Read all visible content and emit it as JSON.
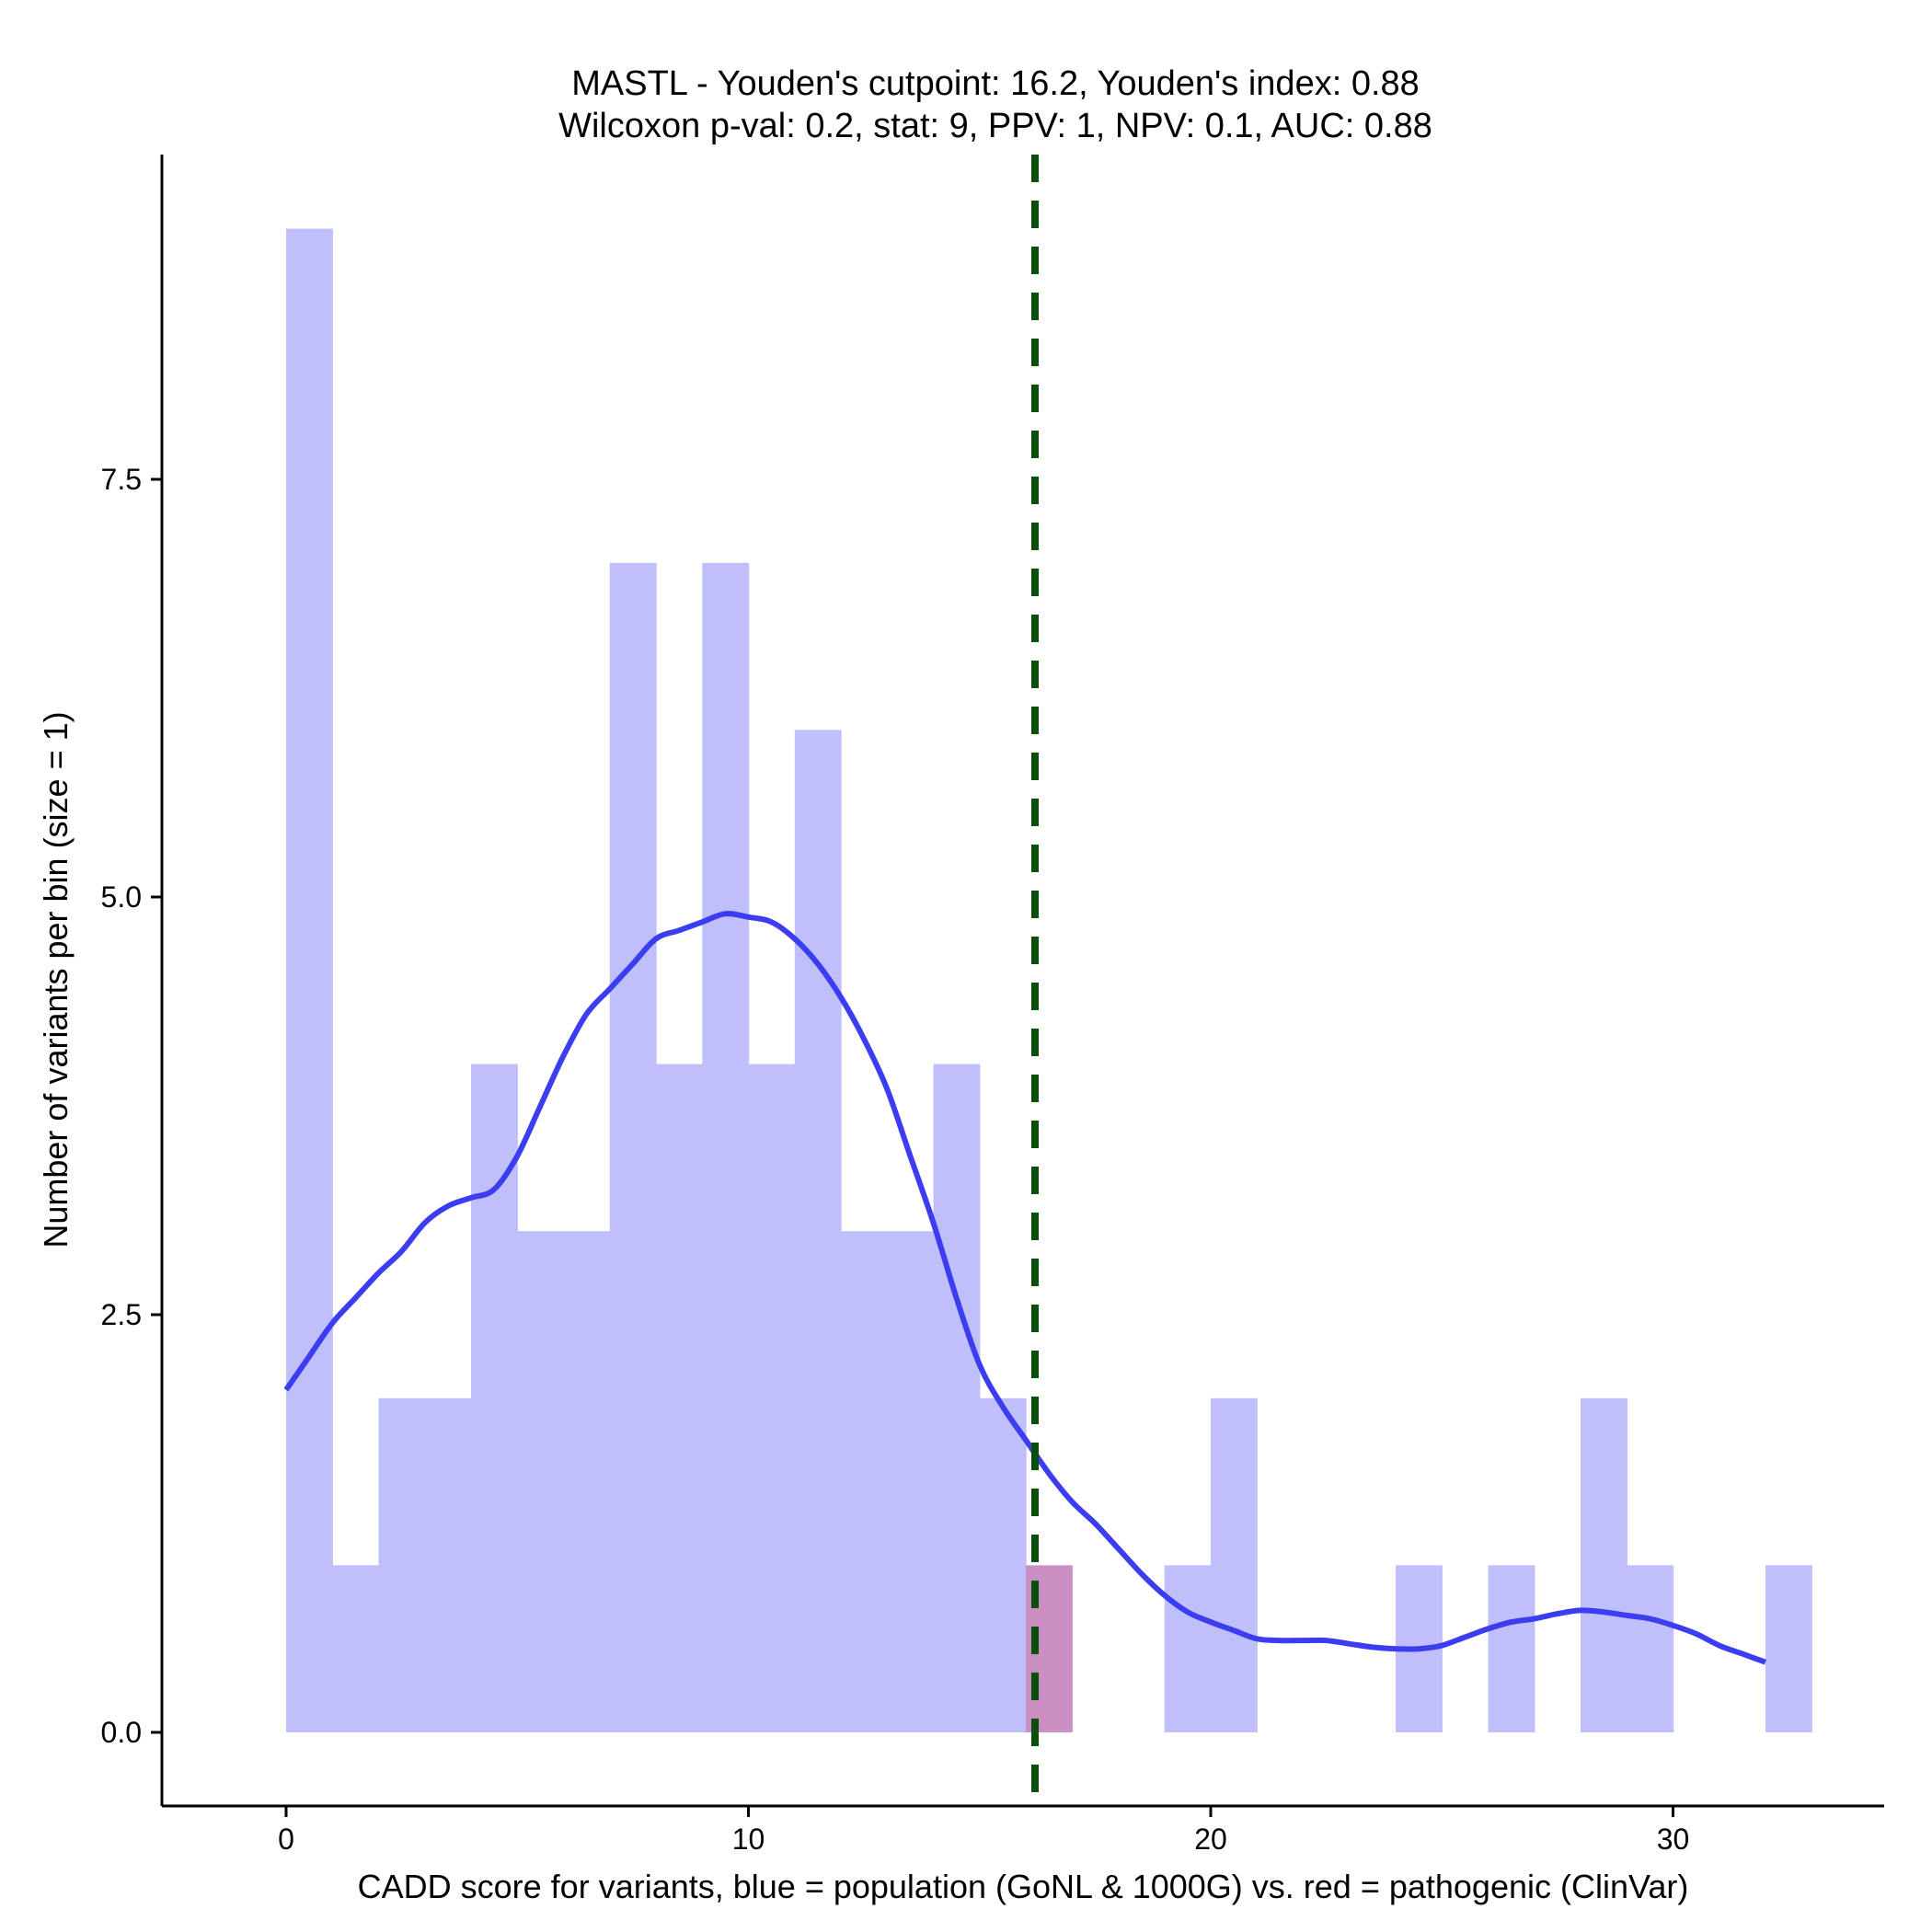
{
  "chart_data": {
    "type": "histogram",
    "title": "MASTL - Youden's cutpoint: 16.2, Youden's index: 0.88",
    "subtitle": "Wilcoxon p-val: 0.2, stat: 9, PPV: 1, NPV: 0.1, AUC: 0.88",
    "xlabel": "CADD score for variants, blue = population (GoNL & 1000G) vs. red = pathogenic (ClinVar)",
    "ylabel": "Number of variants per bin (size = 1)",
    "xlim": [
      -2.7,
      34.6
    ],
    "ylim": [
      -0.45,
      9.6
    ],
    "x_ticks": [
      {
        "value": 0,
        "label": "0"
      },
      {
        "value": 10,
        "label": "10"
      },
      {
        "value": 20,
        "label": "20"
      },
      {
        "value": 30,
        "label": "30"
      }
    ],
    "y_ticks": [
      {
        "value": 0,
        "label": "0.0"
      },
      {
        "value": 2.5,
        "label": "2.5"
      },
      {
        "value": 5,
        "label": "5.0"
      },
      {
        "value": 7.5,
        "label": "7.5"
      }
    ],
    "bin_width": 1,
    "colors": {
      "population": "#bfbffc",
      "pathogenic": "#cc8fc4",
      "density_line": "#3c3cf0",
      "cutpoint_line": "#0a500a",
      "axis": "#000000"
    },
    "series": [
      {
        "key": "population",
        "bins": [
          {
            "x0": 0,
            "count": 9
          },
          {
            "x0": 1,
            "count": 1
          },
          {
            "x0": 2,
            "count": 2
          },
          {
            "x0": 3,
            "count": 2
          },
          {
            "x0": 4,
            "count": 4
          },
          {
            "x0": 5,
            "count": 3
          },
          {
            "x0": 6,
            "count": 3
          },
          {
            "x0": 7,
            "count": 7
          },
          {
            "x0": 8,
            "count": 4
          },
          {
            "x0": 9,
            "count": 7
          },
          {
            "x0": 10,
            "count": 4
          },
          {
            "x0": 11,
            "count": 6
          },
          {
            "x0": 12,
            "count": 3
          },
          {
            "x0": 13,
            "count": 3
          },
          {
            "x0": 14,
            "count": 4
          },
          {
            "x0": 15,
            "count": 2
          },
          {
            "x0": 19,
            "count": 1
          },
          {
            "x0": 20,
            "count": 2
          },
          {
            "x0": 24,
            "count": 1
          },
          {
            "x0": 26,
            "count": 1
          },
          {
            "x0": 28,
            "count": 2
          },
          {
            "x0": 29,
            "count": 1
          },
          {
            "x0": 32,
            "count": 1
          }
        ]
      },
      {
        "key": "pathogenic",
        "bins": [
          {
            "x0": 16,
            "count": 1
          }
        ]
      }
    ],
    "density": [
      [
        0,
        2.05
      ],
      [
        0.5,
        2.25
      ],
      [
        1,
        2.45
      ],
      [
        1.5,
        2.6
      ],
      [
        2,
        2.75
      ],
      [
        2.5,
        2.88
      ],
      [
        3,
        3.05
      ],
      [
        3.5,
        3.15
      ],
      [
        4,
        3.2
      ],
      [
        4.5,
        3.25
      ],
      [
        5,
        3.45
      ],
      [
        5.5,
        3.75
      ],
      [
        6,
        4.05
      ],
      [
        6.5,
        4.3
      ],
      [
        7,
        4.45
      ],
      [
        7.5,
        4.6
      ],
      [
        8,
        4.75
      ],
      [
        8.5,
        4.8
      ],
      [
        9,
        4.85
      ],
      [
        9.5,
        4.9
      ],
      [
        10,
        4.88
      ],
      [
        10.5,
        4.85
      ],
      [
        11,
        4.75
      ],
      [
        11.5,
        4.6
      ],
      [
        12,
        4.4
      ],
      [
        12.5,
        4.15
      ],
      [
        13,
        3.85
      ],
      [
        13.5,
        3.45
      ],
      [
        14,
        3.05
      ],
      [
        14.5,
        2.6
      ],
      [
        15,
        2.2
      ],
      [
        15.5,
        1.95
      ],
      [
        16,
        1.75
      ],
      [
        16.5,
        1.55
      ],
      [
        17,
        1.38
      ],
      [
        17.5,
        1.25
      ],
      [
        18,
        1.1
      ],
      [
        18.5,
        0.95
      ],
      [
        19,
        0.82
      ],
      [
        19.5,
        0.72
      ],
      [
        20,
        0.66
      ],
      [
        20.5,
        0.61
      ],
      [
        21,
        0.56
      ],
      [
        21.5,
        0.55
      ],
      [
        22,
        0.55
      ],
      [
        22.5,
        0.55
      ],
      [
        23,
        0.53
      ],
      [
        23.5,
        0.51
      ],
      [
        24,
        0.5
      ],
      [
        24.5,
        0.5
      ],
      [
        25,
        0.52
      ],
      [
        25.5,
        0.57
      ],
      [
        26,
        0.62
      ],
      [
        26.5,
        0.66
      ],
      [
        27,
        0.68
      ],
      [
        27.5,
        0.71
      ],
      [
        28,
        0.73
      ],
      [
        28.5,
        0.72
      ],
      [
        29,
        0.7
      ],
      [
        29.5,
        0.68
      ],
      [
        30,
        0.64
      ],
      [
        30.5,
        0.59
      ],
      [
        31,
        0.52
      ],
      [
        31.5,
        0.47
      ],
      [
        32,
        0.42
      ]
    ],
    "cutpoint": 16.2
  }
}
